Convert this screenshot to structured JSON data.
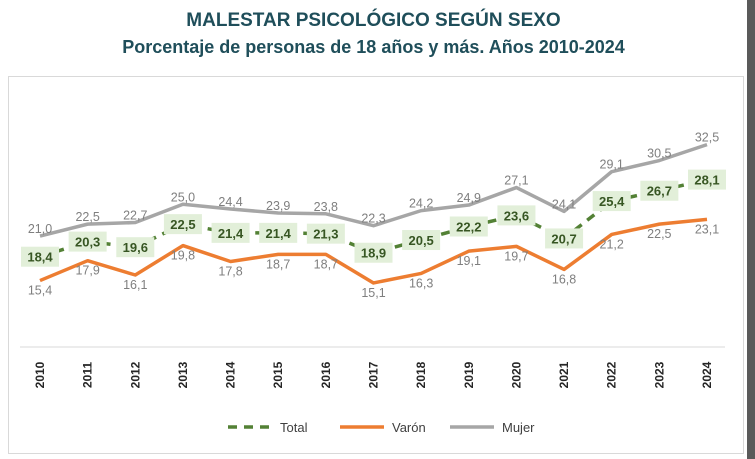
{
  "chart_data": {
    "type": "line",
    "title": "MALESTAR PSICOLÓGICO SEGÚN SEXO",
    "subtitle": "Porcentaje de personas de 18 años y más. Años 2010-2024",
    "categories": [
      "2010",
      "2011",
      "2012",
      "2013",
      "2014",
      "2015",
      "2016",
      "2017",
      "2018",
      "2019",
      "2020",
      "2021",
      "2022",
      "2023",
      "2024"
    ],
    "series": [
      {
        "name": "Total",
        "color": "#538135",
        "style": "dashed",
        "values": [
          18.4,
          20.3,
          19.6,
          22.5,
          21.4,
          21.4,
          21.3,
          18.9,
          20.5,
          22.2,
          23.6,
          20.7,
          25.4,
          26.7,
          28.1
        ],
        "labels": [
          "18,4",
          "20,3",
          "19,6",
          "22,5",
          "21,4",
          "21,4",
          "21,3",
          "18,9",
          "20,5",
          "22,2",
          "23,6",
          "20,7",
          "25,4",
          "26,7",
          "28,1"
        ]
      },
      {
        "name": "Varón",
        "color": "#ed7d31",
        "style": "solid",
        "values": [
          15.4,
          17.9,
          16.1,
          19.8,
          17.8,
          18.7,
          18.7,
          15.1,
          16.3,
          19.1,
          19.7,
          16.8,
          21.2,
          22.5,
          23.1
        ],
        "labels": [
          "15,4",
          "17,9",
          "16,1",
          "19,8",
          "17,8",
          "18,7",
          "18,7",
          "15,1",
          "16,3",
          "19,1",
          "19,7",
          "16,8",
          "21,2",
          "22,5",
          "23,1"
        ]
      },
      {
        "name": "Mujer",
        "color": "#a6a6a6",
        "style": "solid",
        "values": [
          21.0,
          22.5,
          22.7,
          25.0,
          24.4,
          23.9,
          23.8,
          22.3,
          24.2,
          24.9,
          27.1,
          24.1,
          29.1,
          30.5,
          32.5
        ],
        "labels": [
          "21,0",
          "22,5",
          "22,7",
          "25,0",
          "24,4",
          "23,9",
          "23,8",
          "22,3",
          "24,2",
          "24,9",
          "27,1",
          "24,1",
          "29,1",
          "30,5",
          "32,5"
        ]
      }
    ],
    "legend": "bottom",
    "grid": false
  }
}
